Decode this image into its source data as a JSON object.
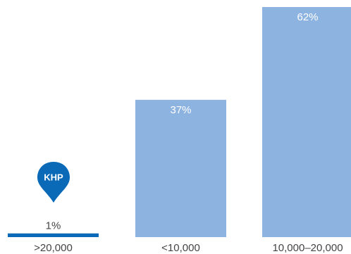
{
  "chart_data": {
    "type": "bar",
    "categories": [
      ">20,000",
      "<10,000",
      "10,000–20,000"
    ],
    "values": [
      1,
      37,
      62
    ],
    "value_labels": [
      "1%",
      "37%",
      "62%"
    ],
    "ylim": [
      0,
      62
    ],
    "highlight": {
      "category_index": 0,
      "marker_label": "KHP"
    },
    "colors": {
      "highlight_bar": "#0a6ab7",
      "bar": "#8db3e0",
      "marker": "#0a6ab7",
      "label_inside": "#ffffff",
      "label_outside": "#444444",
      "category_label": "#444444"
    }
  }
}
